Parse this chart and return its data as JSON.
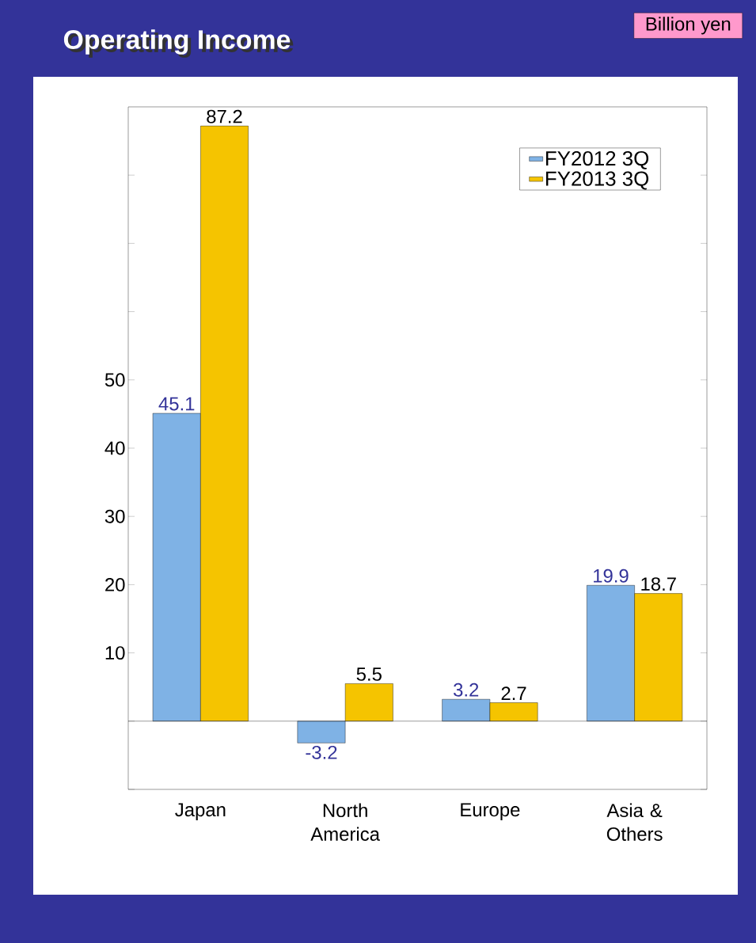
{
  "chart_data": {
    "type": "bar",
    "title": "Operating Income",
    "categories": [
      "Japan",
      "North America",
      "Europe",
      "Asia & Others"
    ],
    "series": [
      {
        "name": "FY2012 3Q",
        "color": "#7fb2e5",
        "values": [
          45.1,
          -3.2,
          3.2,
          19.9
        ]
      },
      {
        "name": "FY2013 3Q",
        "color": "#f5c400",
        "values": [
          87.2,
          5.5,
          2.7,
          18.7
        ]
      }
    ],
    "ylim": [
      -10,
      90
    ],
    "yticks": [
      {
        "value": -10,
        "label": null
      },
      {
        "value": 0,
        "label": null
      },
      10,
      20,
      30,
      40,
      50,
      {
        "value": 60,
        "label": null
      },
      {
        "value": 70,
        "label": null
      },
      {
        "value": 80,
        "label": null
      }
    ],
    "data_labels": true,
    "legend": "top right",
    "annotations": [
      "Billion yen"
    ]
  }
}
